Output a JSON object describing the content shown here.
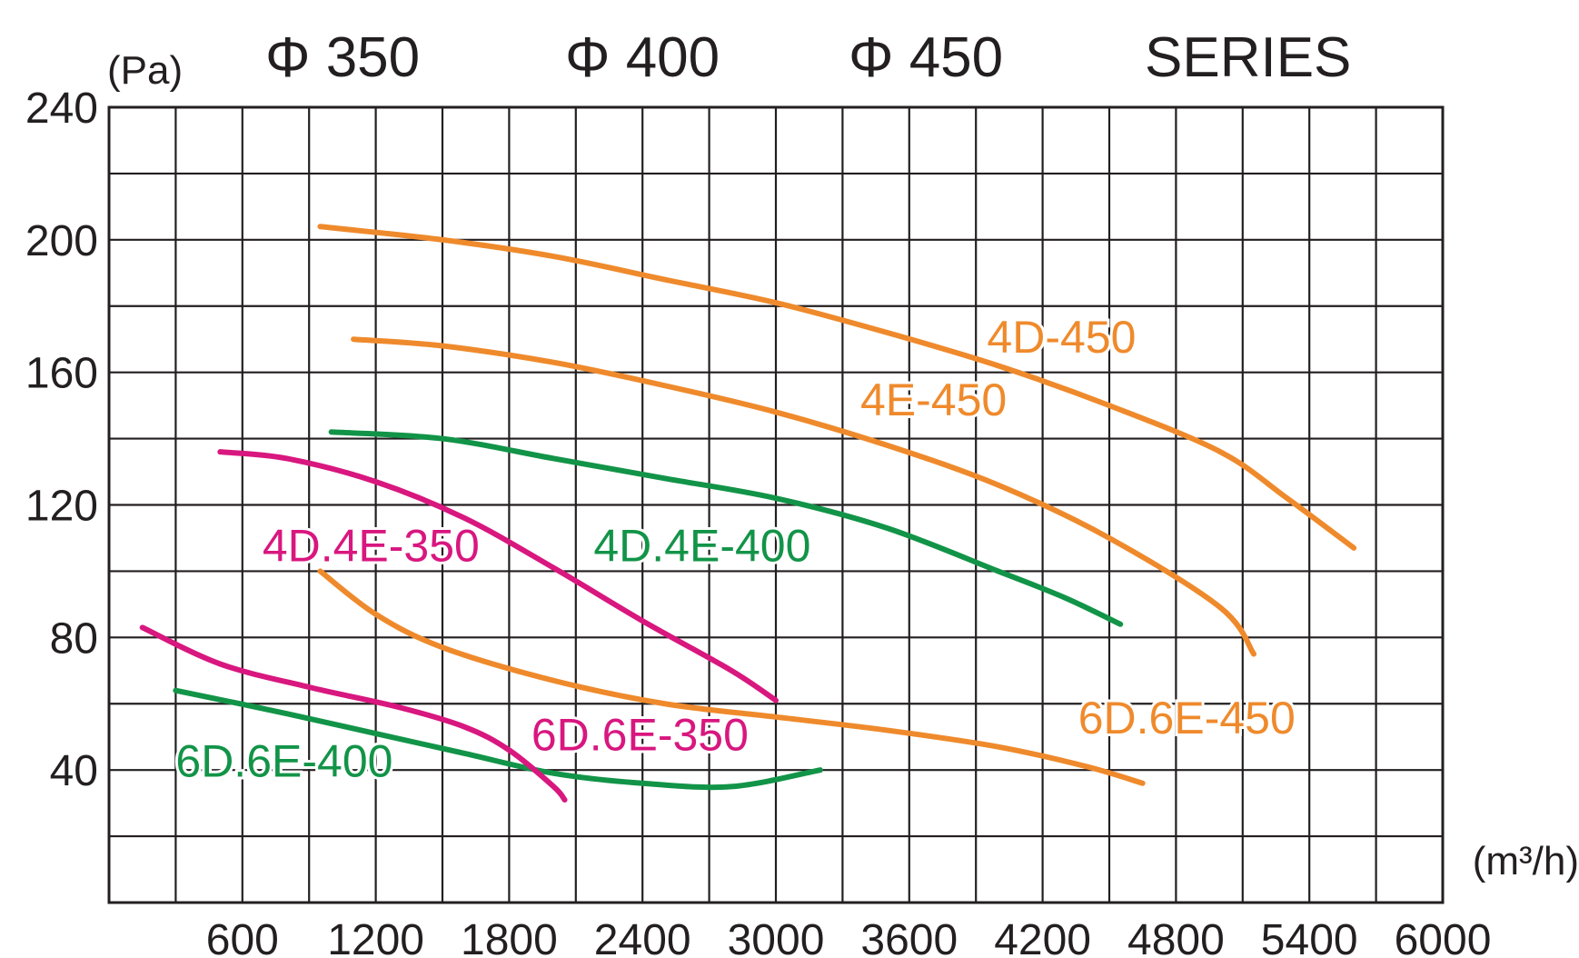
{
  "header": {
    "series_sizes": [
      "Φ 350",
      "Φ 400",
      "Φ 450"
    ],
    "series_word": "SERIES"
  },
  "colors": {
    "orange": "#ef8a2c",
    "green": "#129448",
    "magenta": "#d8177f",
    "grid": "#231f20"
  },
  "chart_data": {
    "type": "line",
    "title": "",
    "xlabel": "(m³/h)",
    "ylabel": "(Pa)",
    "xlim": [
      0,
      6000
    ],
    "ylim": [
      0,
      240
    ],
    "x_ticks": [
      600,
      1200,
      1800,
      2400,
      3000,
      3600,
      4200,
      4800,
      5400,
      6000
    ],
    "y_ticks": [
      40,
      80,
      120,
      160,
      200,
      240
    ],
    "grid": true,
    "series": [
      {
        "name": "4D-450",
        "color": "orange",
        "label_at": [
          3950,
          166
        ],
        "points": [
          [
            950,
            204
          ],
          [
            1500,
            200
          ],
          [
            2000,
            195
          ],
          [
            2500,
            188
          ],
          [
            3000,
            181
          ],
          [
            3500,
            172
          ],
          [
            4000,
            162
          ],
          [
            4500,
            150
          ],
          [
            5000,
            136
          ],
          [
            5300,
            122
          ],
          [
            5600,
            107
          ]
        ]
      },
      {
        "name": "4E-450",
        "color": "orange",
        "label_at": [
          3380,
          147
        ],
        "points": [
          [
            1100,
            170
          ],
          [
            1500,
            168
          ],
          [
            2000,
            163
          ],
          [
            2500,
            156
          ],
          [
            3000,
            148
          ],
          [
            3500,
            138
          ],
          [
            4000,
            126
          ],
          [
            4500,
            110
          ],
          [
            5000,
            89
          ],
          [
            5150,
            75
          ]
        ]
      },
      {
        "name": "6D.6E-450",
        "color": "orange",
        "label_at": [
          4360,
          51
        ],
        "points": [
          [
            950,
            100
          ],
          [
            1200,
            87
          ],
          [
            1500,
            77
          ],
          [
            2000,
            67
          ],
          [
            2500,
            60
          ],
          [
            3000,
            56
          ],
          [
            3500,
            52
          ],
          [
            4000,
            47
          ],
          [
            4400,
            41
          ],
          [
            4650,
            36
          ]
        ]
      },
      {
        "name": "4D.4E-400",
        "color": "green",
        "label_at": [
          2180,
          103
        ],
        "points": [
          [
            1000,
            142
          ],
          [
            1500,
            140
          ],
          [
            2000,
            134
          ],
          [
            2500,
            128
          ],
          [
            3000,
            122
          ],
          [
            3500,
            113
          ],
          [
            4000,
            100
          ],
          [
            4300,
            92
          ],
          [
            4550,
            84
          ]
        ]
      },
      {
        "name": "6D.6E-400",
        "color": "green",
        "label_at": [
          300,
          38
        ],
        "points": [
          [
            300,
            64
          ],
          [
            800,
            57
          ],
          [
            1200,
            51
          ],
          [
            1600,
            45
          ],
          [
            2000,
            39
          ],
          [
            2400,
            36
          ],
          [
            2800,
            35
          ],
          [
            3200,
            40
          ]
        ]
      },
      {
        "name": "4D.4E-350",
        "color": "magenta",
        "label_at": [
          690,
          103
        ],
        "points": [
          [
            500,
            136
          ],
          [
            800,
            134
          ],
          [
            1200,
            127
          ],
          [
            1600,
            116
          ],
          [
            2000,
            101
          ],
          [
            2400,
            85
          ],
          [
            2800,
            70
          ],
          [
            3000,
            61
          ]
        ]
      },
      {
        "name": "6D.6E-350",
        "color": "magenta",
        "label_at": [
          1900,
          46
        ],
        "points": [
          [
            150,
            83
          ],
          [
            500,
            72
          ],
          [
            900,
            65
          ],
          [
            1300,
            59
          ],
          [
            1600,
            53
          ],
          [
            1800,
            46
          ],
          [
            2000,
            35
          ],
          [
            2050,
            31
          ]
        ]
      }
    ]
  }
}
